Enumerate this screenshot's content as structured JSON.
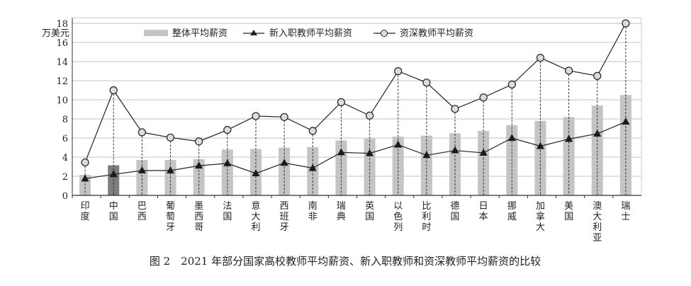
{
  "chart_data": {
    "type": "bar",
    "title": "",
    "caption": "图 2　2021 年部分国家高校教师平均薪资、新入职教师和资深教师平均薪资的比较",
    "ylabel": "万美元",
    "xlabel": "",
    "ylim": [
      0,
      18
    ],
    "yticks": [
      0,
      2,
      4,
      6,
      8,
      10,
      12,
      14,
      16,
      18
    ],
    "grid": true,
    "legend_position": "top",
    "categories": [
      "印度",
      "中国",
      "巴西",
      "葡萄牙",
      "墨西哥",
      "法国",
      "意大利",
      "西班牙",
      "南非",
      "瑞典",
      "英国",
      "以色列",
      "比利时",
      "德国",
      "日本",
      "挪威",
      "加拿大",
      "美国",
      "澳大利亚",
      "瑞士"
    ],
    "highlight_category": "中国",
    "series": [
      {
        "name": "整体平均薪资",
        "kind": "bar",
        "color": "#c4c4c4",
        "highlight_color": "#7d7d7d",
        "values": [
          2.15,
          3.15,
          3.7,
          3.7,
          3.8,
          4.8,
          4.85,
          5.0,
          5.05,
          5.75,
          5.95,
          6.15,
          6.25,
          6.5,
          6.75,
          7.35,
          7.8,
          8.2,
          9.4,
          10.5
        ]
      },
      {
        "name": "新入职教师平均薪资",
        "kind": "line-triangle",
        "color": "#222222",
        "values": [
          1.75,
          2.2,
          2.6,
          2.6,
          3.1,
          3.35,
          2.3,
          3.4,
          2.85,
          4.5,
          4.4,
          5.3,
          4.2,
          4.7,
          4.45,
          6.0,
          5.15,
          5.9,
          6.45,
          7.7
        ]
      },
      {
        "name": "资深教师平均薪资",
        "kind": "line-circle",
        "color": "#222222",
        "values": [
          3.45,
          11.0,
          6.6,
          6.05,
          5.65,
          6.85,
          8.3,
          8.2,
          6.75,
          9.75,
          8.35,
          13.0,
          11.8,
          9.05,
          10.25,
          11.6,
          14.4,
          13.05,
          12.5,
          18.0
        ]
      }
    ]
  }
}
